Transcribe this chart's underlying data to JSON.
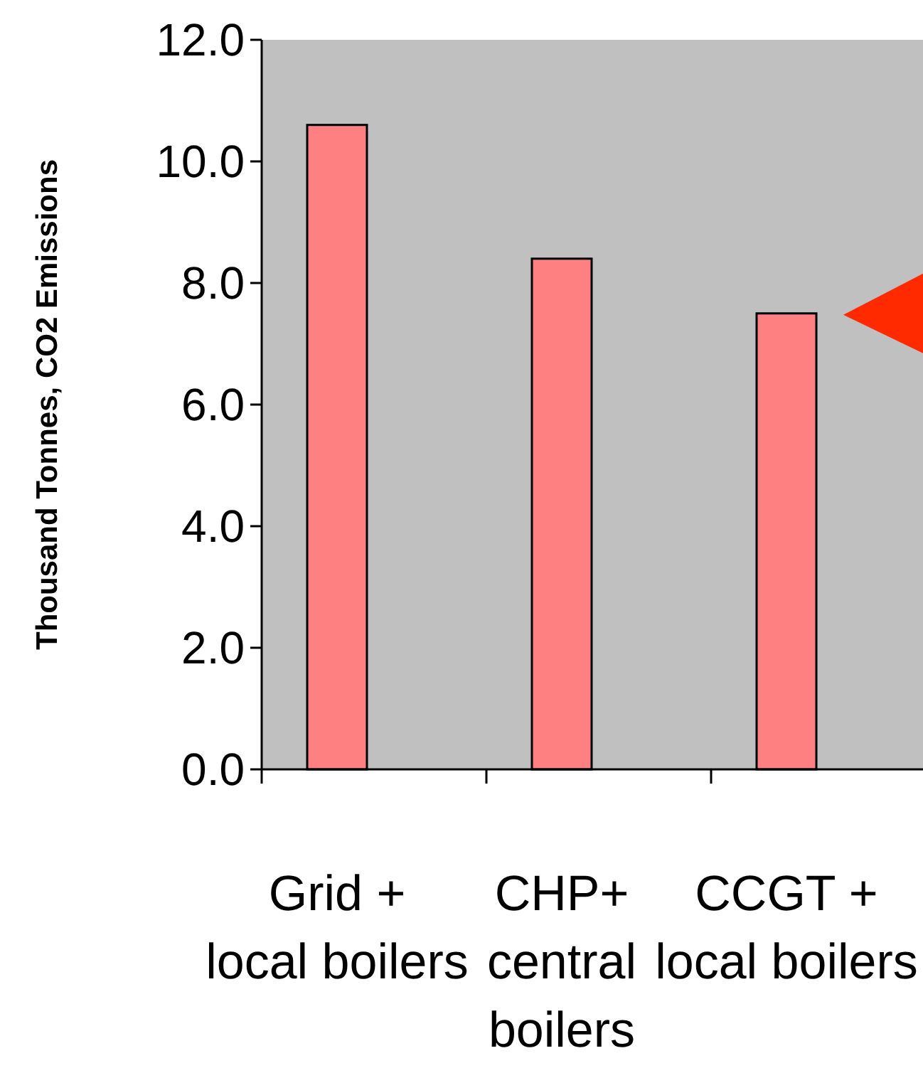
{
  "chart_data": {
    "type": "bar",
    "ylabel": "Thousand Tonnes, CO2 Emissions",
    "categories": [
      "Grid + local boilers",
      "CHP+ central boilers",
      "CCGT + local boilers"
    ],
    "values": [
      10.6,
      8.4,
      7.5
    ],
    "color": "#ff8080",
    "ylim": [
      0,
      12
    ],
    "yticks": [
      {
        "value": 0,
        "label": "0.0"
      },
      {
        "value": 2,
        "label": "2.0"
      },
      {
        "value": 4,
        "label": "4.0"
      },
      {
        "value": 6,
        "label": "6.0"
      },
      {
        "value": 8,
        "label": "8.0"
      },
      {
        "value": 10,
        "label": "10.0"
      },
      {
        "value": 12,
        "label": "12.0"
      }
    ],
    "grid": false
  }
}
